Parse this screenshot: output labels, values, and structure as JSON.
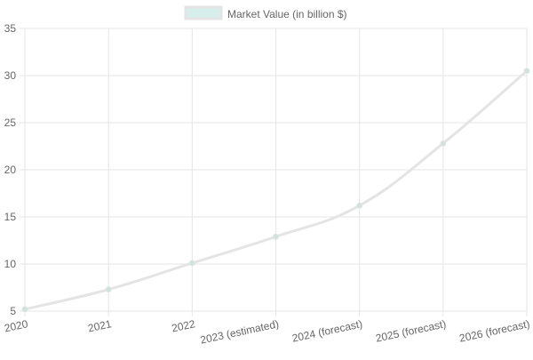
{
  "chart_data": {
    "type": "line",
    "categories": [
      "2020",
      "2021",
      "2022",
      "2023 (estimated)",
      "2024 (forecast)",
      "2025 (forecast)",
      "2026 (forecast)"
    ],
    "series": [
      {
        "name": "Market Value (in billion $)",
        "values": [
          5.2,
          7.3,
          10.1,
          12.9,
          16.2,
          22.8,
          30.5
        ],
        "line_color": "#e4e4e4",
        "fill_color": "#d7efec",
        "point_color": "#cce3df"
      }
    ],
    "ylim": [
      5,
      35
    ],
    "yticks": [
      5,
      10,
      15,
      20,
      25,
      30,
      35
    ],
    "grid": true,
    "legend_position": "top-center",
    "xlabel": "",
    "ylabel": "",
    "title": ""
  },
  "colors": {
    "grid": "#e6e6e6",
    "tick_text": "#666666"
  }
}
